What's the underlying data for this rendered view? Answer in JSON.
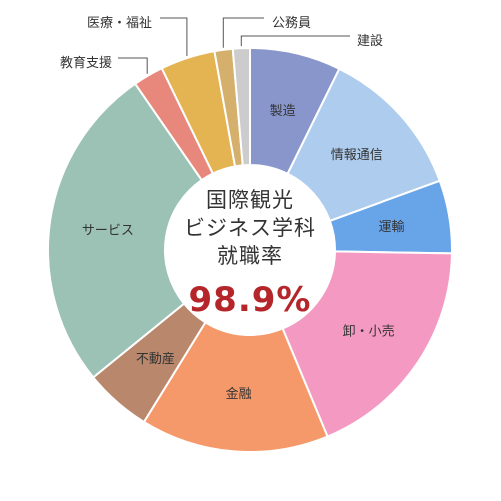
{
  "chart_data": {
    "type": "pie",
    "variant": "donut",
    "center": {
      "lines": [
        "国際観光",
        "ビジネス学科",
        "就職率"
      ],
      "rate": "98.9%"
    },
    "slices": [
      {
        "label": "製造",
        "value": 7.5,
        "color": "#8896cc",
        "label_mode": "inside"
      },
      {
        "label": "情報通信",
        "value": 12.5,
        "color": "#aecdee",
        "label_mode": "inside"
      },
      {
        "label": "運輸",
        "value": 6.0,
        "color": "#68a4e8",
        "label_mode": "inside"
      },
      {
        "label": "卸・小売",
        "value": 19.0,
        "color": "#f49ac2",
        "label_mode": "inside"
      },
      {
        "label": "金融",
        "value": 15.5,
        "color": "#f5996a",
        "label_mode": "inside"
      },
      {
        "label": "不動産",
        "value": 5.5,
        "color": "#b8876c",
        "label_mode": "inside"
      },
      {
        "label": "サービス",
        "value": 27.0,
        "color": "#9cc2b5",
        "label_mode": "inside"
      },
      {
        "label": "教育支援",
        "value": 2.5,
        "color": "#e8877c",
        "label_mode": "outside"
      },
      {
        "label": "医療・福祉",
        "value": 4.5,
        "color": "#e5b452",
        "label_mode": "outside"
      },
      {
        "label": "公務員",
        "value": 1.5,
        "color": "#d4b06c",
        "label_mode": "outside"
      },
      {
        "label": "建設",
        "value": 1.4,
        "color": "#cccccc",
        "label_mode": "outside"
      }
    ]
  }
}
